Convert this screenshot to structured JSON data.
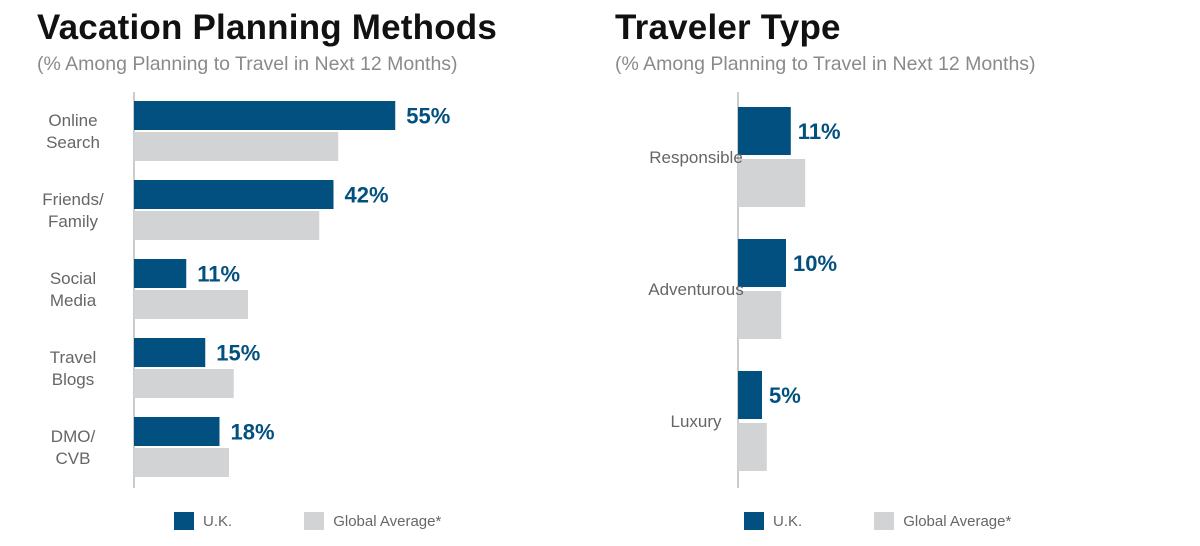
{
  "colors": {
    "uk": "#02507f",
    "global": "#d2d3d5",
    "axis": "#9a9a9a"
  },
  "chart_data": [
    {
      "type": "bar",
      "orientation": "horizontal",
      "title": "Vacation Planning Methods",
      "subtitle": "(% Among Planning to Travel in Next 12 Months)",
      "categories": [
        [
          "Online",
          "Search"
        ],
        [
          "Friends/",
          "Family"
        ],
        [
          "Social",
          "Media"
        ],
        [
          "Travel",
          "Blogs"
        ],
        [
          "DMO/",
          "CVB"
        ]
      ],
      "series": [
        {
          "name": "U.K.",
          "values": [
            55,
            42,
            11,
            15,
            18
          ],
          "data_labels": [
            "55%",
            "42%",
            "11%",
            "15%",
            "18%"
          ]
        },
        {
          "name": "Global Average*",
          "values": [
            43,
            39,
            24,
            21,
            20
          ]
        }
      ],
      "xlim": [
        0,
        100
      ],
      "grid": false,
      "legend_position": "bottom"
    },
    {
      "type": "bar",
      "orientation": "horizontal",
      "title": "Traveler Type",
      "subtitle": "(% Among Planning to Travel in Next 12 Months)",
      "categories": [
        [
          "Responsible"
        ],
        [
          "Adventurous"
        ],
        [
          "Luxury"
        ]
      ],
      "series": [
        {
          "name": "U.K.",
          "values": [
            11,
            10,
            5
          ],
          "data_labels": [
            "11%",
            "10%",
            "5%"
          ]
        },
        {
          "name": "Global Average*",
          "values": [
            14,
            9,
            6
          ]
        }
      ],
      "xlim": [
        0,
        100
      ],
      "grid": false,
      "legend_position": "bottom"
    }
  ]
}
